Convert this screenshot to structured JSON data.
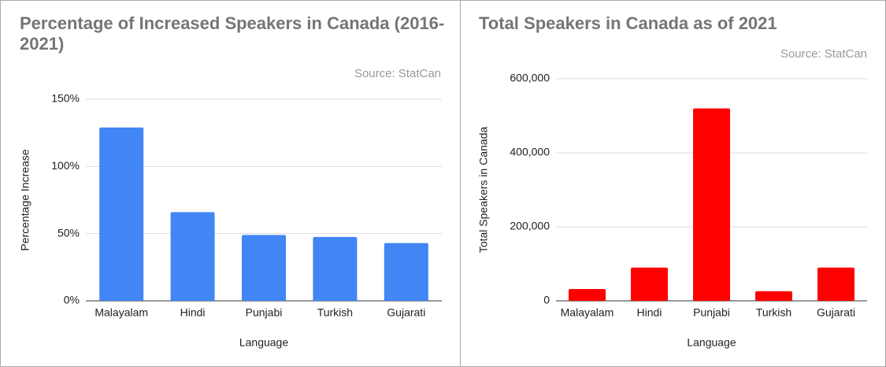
{
  "chart_data": [
    {
      "type": "bar",
      "title": "Percentage of Increased Speakers in Canada (2016-2021)",
      "subtitle": "Source: StatCan",
      "x_label": "Language",
      "y_label": "Percentage Increase",
      "categories": [
        "Malayalam",
        "Hindi",
        "Punjabi",
        "Turkish",
        "Gujarati"
      ],
      "values": [
        129,
        66,
        49,
        47.5,
        43
      ],
      "color": "#4285f4",
      "ylim": [
        0,
        150
      ],
      "yticks": [
        {
          "value": 0,
          "label": "0%"
        },
        {
          "value": 50,
          "label": "50%"
        },
        {
          "value": 100,
          "label": "100%"
        },
        {
          "value": 150,
          "label": "150%"
        }
      ],
      "grid": true
    },
    {
      "type": "bar",
      "title": "Total Speakers in Canada as of 2021",
      "subtitle": "Source: StatCan",
      "x_label": "Language",
      "y_label": "Total Speakers in Canada",
      "categories": [
        "Malayalam",
        "Hindi",
        "Punjabi",
        "Turkish",
        "Gujarati"
      ],
      "values": [
        32000,
        90000,
        520000,
        26000,
        90000
      ],
      "color": "#ff0000",
      "ylim": [
        0,
        600000
      ],
      "yticks": [
        0,
        {
          "value": 200000,
          "label": "200,000"
        },
        {
          "value": 400000,
          "label": "400,000"
        },
        {
          "value": 600000,
          "label": "600,000"
        }
      ],
      "grid": true
    }
  ]
}
